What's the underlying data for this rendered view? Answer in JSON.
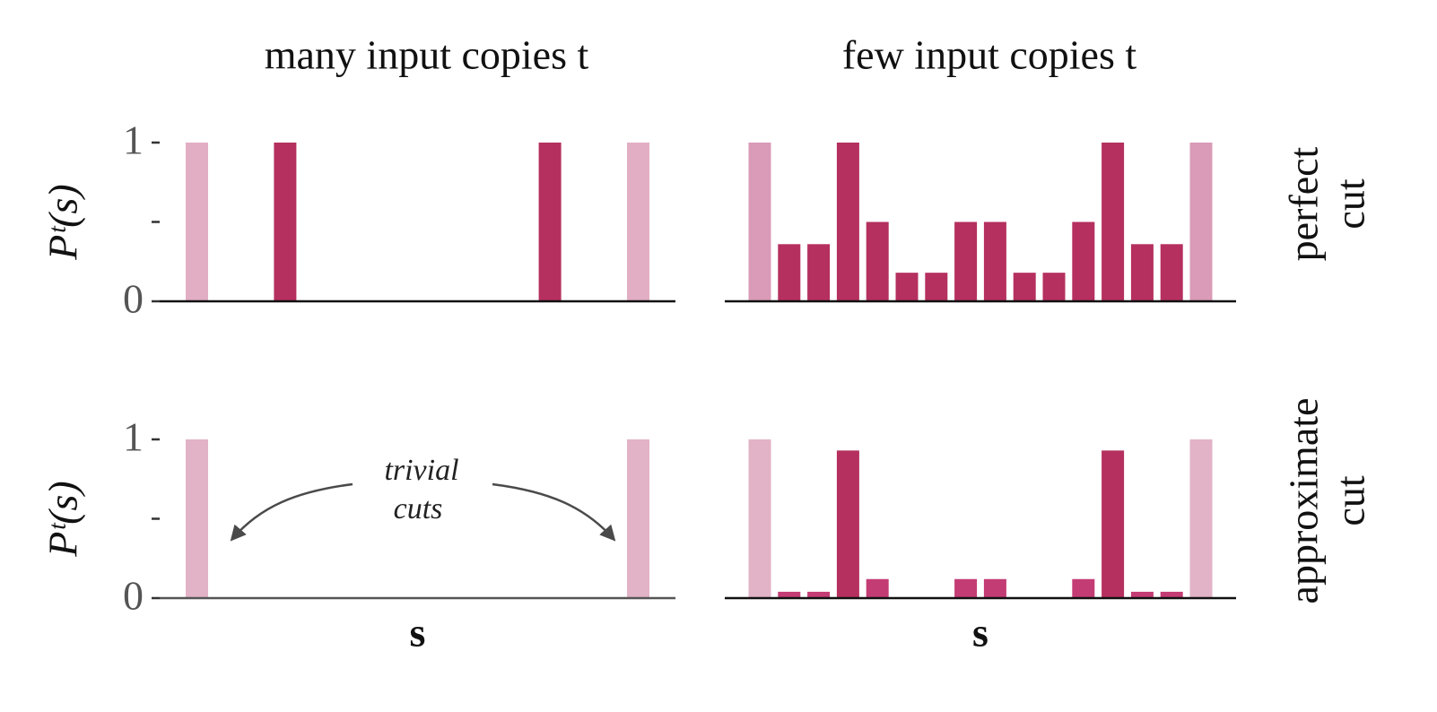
{
  "chart_data": [
    {
      "type": "bar",
      "title": "many input copies t",
      "ylabel": "Pᵗ(s)",
      "categories": [
        null,
        null,
        null,
        null,
        null,
        null,
        null,
        null,
        null,
        null,
        null,
        null,
        null,
        null,
        null,
        null
      ],
      "values": [
        1,
        0,
        0,
        1,
        0,
        0,
        0,
        0,
        0,
        0,
        0,
        0,
        1,
        0,
        0,
        1
      ],
      "colors": [
        "#e2aec4",
        "#b5305f",
        "#b5305f",
        "#b5305f",
        "#b5305f",
        "#b5305f",
        "#b5305f",
        "#b5305f",
        "#b5305f",
        "#b5305f",
        "#b5305f",
        "#b5305f",
        "#b5305f",
        "#b5305f",
        "#b5305f",
        "#e2aec4"
      ],
      "ylim": [
        0,
        1
      ],
      "yticks": [
        0,
        1
      ],
      "minor_yticks": [
        0.5
      ]
    },
    {
      "type": "bar",
      "title": "few input copies t",
      "row_label": [
        "perfect",
        "cut"
      ],
      "categories": [
        null,
        null,
        null,
        null,
        null,
        null,
        null,
        null,
        null,
        null,
        null,
        null,
        null,
        null,
        null,
        null
      ],
      "values": [
        1,
        0.36,
        0.36,
        1,
        0.5,
        0.18,
        0.18,
        0.5,
        0.5,
        0.18,
        0.18,
        0.5,
        1,
        0.36,
        0.36,
        1
      ],
      "colors": [
        "#d99bb7",
        "#b5305f",
        "#b5305f",
        "#b5305f",
        "#b5305f",
        "#b5305f",
        "#b5305f",
        "#b5305f",
        "#b5305f",
        "#b5305f",
        "#b5305f",
        "#b5305f",
        "#b5305f",
        "#b5305f",
        "#b5305f",
        "#d99bb7"
      ],
      "ylim": [
        0,
        1
      ]
    },
    {
      "type": "bar",
      "ylabel": "Pᵗ(s)",
      "xlabel": "s",
      "annotation": [
        "trivial",
        "cuts"
      ],
      "categories": [
        null,
        null,
        null,
        null,
        null,
        null,
        null,
        null,
        null,
        null,
        null,
        null,
        null,
        null,
        null,
        null
      ],
      "values": [
        1,
        0,
        0,
        0,
        0,
        0,
        0,
        0,
        0,
        0,
        0,
        0,
        0,
        0,
        0,
        1
      ],
      "colors": [
        "#e2b2c7",
        "#b5305f",
        "#b5305f",
        "#b5305f",
        "#b5305f",
        "#b5305f",
        "#b5305f",
        "#b5305f",
        "#b5305f",
        "#b5305f",
        "#b5305f",
        "#b5305f",
        "#b5305f",
        "#b5305f",
        "#b5305f",
        "#e2b2c7"
      ],
      "ylim": [
        0,
        1
      ],
      "yticks": [
        0,
        1
      ],
      "minor_yticks": [
        0.5
      ]
    },
    {
      "type": "bar",
      "xlabel": "s",
      "row_label": [
        "approximate",
        "cut"
      ],
      "categories": [
        null,
        null,
        null,
        null,
        null,
        null,
        null,
        null,
        null,
        null,
        null,
        null,
        null,
        null,
        null,
        null
      ],
      "values": [
        1,
        0.04,
        0.04,
        0.93,
        0.12,
        0,
        0,
        0.12,
        0.12,
        0,
        0,
        0.12,
        0.93,
        0.04,
        0.04,
        1
      ],
      "colors": [
        "#e2b2c7",
        "#c43c74",
        "#c43c74",
        "#b5305f",
        "#c43c74",
        "#c43c74",
        "#c43c74",
        "#c43c74",
        "#c43c74",
        "#c43c74",
        "#c43c74",
        "#c43c74",
        "#b5305f",
        "#c43c74",
        "#c43c74",
        "#e2b2c7"
      ],
      "ylim": [
        0,
        1
      ]
    }
  ]
}
